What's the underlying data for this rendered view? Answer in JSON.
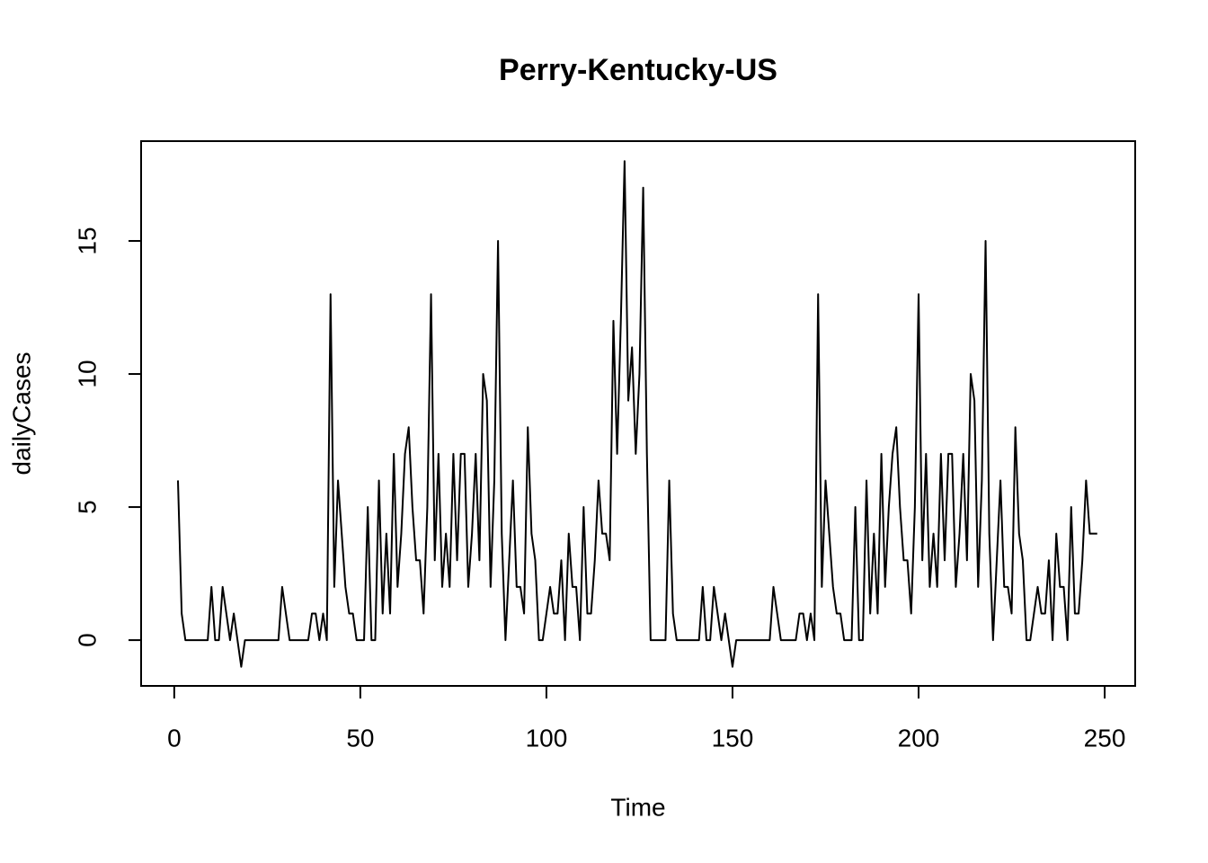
{
  "chart_data": {
    "type": "line",
    "title": "Perry-Kentucky-US",
    "xlabel": "Time",
    "ylabel": "dailyCases",
    "x": [
      1,
      2,
      3,
      4,
      5,
      6,
      7,
      8,
      9,
      10,
      11,
      12,
      13,
      14,
      15,
      16,
      17,
      18,
      19,
      20,
      21,
      22,
      23,
      24,
      25,
      26,
      27,
      28,
      29,
      30,
      31,
      32,
      33,
      34,
      35,
      36,
      37,
      38,
      39,
      40,
      41,
      42,
      43,
      44,
      45,
      46,
      47,
      48,
      49,
      50,
      51,
      52,
      53,
      54,
      55,
      56,
      57,
      58,
      59,
      60,
      61,
      62,
      63,
      64,
      65,
      66,
      67,
      68,
      69,
      70,
      71,
      72,
      73,
      74,
      75,
      76,
      77,
      78,
      79,
      80,
      81,
      82,
      83,
      84,
      85,
      86,
      87,
      88,
      89,
      90,
      91,
      92,
      93,
      94,
      95,
      96,
      97,
      98,
      99,
      100,
      101,
      102,
      103,
      104,
      105,
      106,
      107,
      108,
      109,
      110,
      111,
      112,
      113,
      114,
      115,
      116,
      117,
      118,
      119,
      120,
      121,
      122,
      123,
      124,
      125,
      126,
      127,
      128,
      129,
      130,
      131,
      132,
      133,
      134,
      135,
      136,
      137,
      138,
      139,
      140,
      141,
      142,
      143,
      144,
      145,
      146,
      147,
      148,
      149,
      150,
      151,
      152,
      153,
      154,
      155,
      156,
      157,
      158,
      159,
      160,
      161,
      162,
      163,
      164,
      165,
      166,
      167,
      168,
      169,
      170,
      171,
      172,
      173,
      174,
      175,
      176,
      177,
      178,
      179,
      180,
      181,
      182,
      183,
      184,
      185,
      186,
      187,
      188,
      189,
      190,
      191,
      192,
      193,
      194,
      195,
      196,
      197,
      198,
      199,
      200,
      201,
      202,
      203,
      204,
      205,
      206,
      207,
      208,
      209,
      210,
      211,
      212,
      213,
      214,
      215,
      216,
      217,
      218,
      219,
      220,
      221,
      222,
      223,
      224,
      225,
      226,
      227,
      228,
      229,
      230,
      231,
      232,
      233,
      234,
      235,
      236,
      237,
      238,
      239,
      240,
      241,
      242,
      243,
      244,
      245,
      246,
      247,
      248
    ],
    "series": [
      {
        "name": "dailyCases",
        "color": "#000000",
        "values": [
          6,
          1,
          0,
          0,
          0,
          0,
          0,
          0,
          0,
          2,
          0,
          0,
          2,
          1,
          0,
          1,
          0,
          -1,
          0,
          0,
          0,
          0,
          0,
          0,
          0,
          0,
          0,
          0,
          2,
          1,
          0,
          0,
          0,
          0,
          0,
          0,
          1,
          1,
          0,
          1,
          0,
          13,
          2,
          6,
          4,
          2,
          1,
          1,
          0,
          0,
          0,
          5,
          0,
          0,
          6,
          1,
          4,
          1,
          7,
          2,
          4,
          7,
          8,
          5,
          3,
          3,
          1,
          5,
          13,
          3,
          7,
          2,
          4,
          2,
          7,
          3,
          7,
          7,
          2,
          4,
          7,
          3,
          10,
          9,
          2,
          6,
          15,
          4,
          0,
          3,
          6,
          2,
          2,
          1,
          8,
          4,
          3,
          0,
          0,
          1,
          2,
          1,
          1,
          3,
          0,
          4,
          2,
          2,
          0,
          5,
          1,
          1,
          3,
          6,
          4,
          4,
          3,
          12,
          7,
          12,
          18,
          9,
          11,
          7,
          10,
          17,
          7,
          0,
          0,
          0,
          0,
          0,
          6,
          1,
          0,
          0,
          0,
          0,
          0,
          0,
          0,
          2,
          0,
          0,
          2,
          1,
          0,
          1,
          0,
          -1,
          0,
          0,
          0,
          0,
          0,
          0,
          0,
          0,
          0,
          0,
          2,
          1,
          0,
          0,
          0,
          0,
          0,
          1,
          1,
          0,
          1,
          0,
          13,
          2,
          6,
          4,
          2,
          1,
          1,
          0,
          0,
          0,
          5,
          0,
          0,
          6,
          1,
          4,
          1,
          7,
          2,
          5,
          7,
          8,
          5,
          3,
          3,
          1,
          5,
          13,
          3,
          7,
          2,
          4,
          2,
          7,
          3,
          7,
          7,
          2,
          4,
          7,
          3,
          10,
          9,
          2,
          6,
          15,
          4,
          0,
          3,
          6,
          2,
          2,
          1,
          8,
          4,
          3,
          0,
          0,
          1,
          2,
          1,
          1,
          3,
          0,
          4,
          2,
          2,
          0,
          5,
          1,
          1,
          3,
          6,
          4,
          4,
          4
        ]
      }
    ],
    "xlim": [
      -8.9,
      258.2
    ],
    "ylim": [
      -1.72,
      18.75
    ],
    "xticks": [
      0,
      50,
      100,
      150,
      200,
      250
    ],
    "yticks": [
      0,
      5,
      10,
      15
    ]
  }
}
